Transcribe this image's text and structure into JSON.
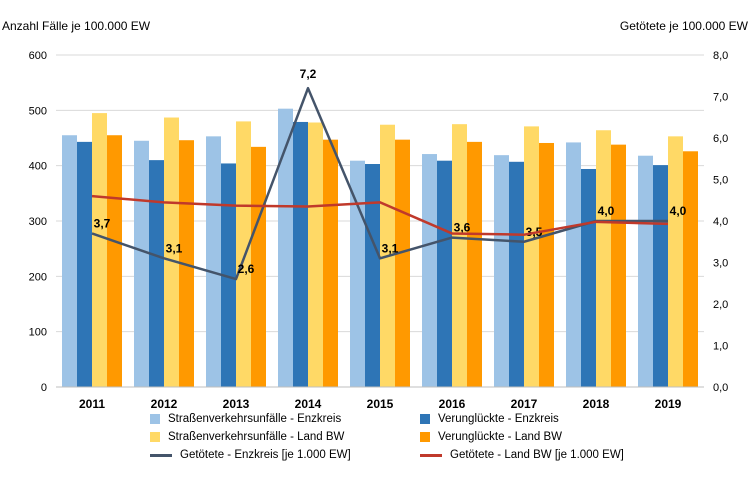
{
  "chart_data": {
    "type": "bar",
    "categories": [
      "2011",
      "2012",
      "2013",
      "2014",
      "2015",
      "2016",
      "2017",
      "2018",
      "2019"
    ],
    "y_left": {
      "label": "Anzahl Fälle je 100.000 EW",
      "range": [
        0,
        600
      ],
      "ticks": [
        "0",
        "100",
        "200",
        "300",
        "400",
        "500",
        "600"
      ]
    },
    "y_right": {
      "label": "Getötete je 100.000 EW",
      "range": [
        0,
        8
      ],
      "ticks": [
        "0,0",
        "1,0",
        "2,0",
        "3,0",
        "4,0",
        "5,0",
        "6,0",
        "7,0",
        "8,0"
      ]
    },
    "grid": true,
    "legend_position": "bottom",
    "series": [
      {
        "name": "Straßenverkehrsunfälle - Enzkreis",
        "type": "bar",
        "axis": "left",
        "color": "#9DC3E6",
        "values": [
          455,
          445,
          453,
          503,
          409,
          421,
          419,
          442,
          418
        ]
      },
      {
        "name": "Verunglückte - Enzkreis",
        "type": "bar",
        "axis": "left",
        "color": "#2E75B6",
        "values": [
          443,
          410,
          404,
          479,
          403,
          409,
          407,
          394,
          401
        ]
      },
      {
        "name": "Straßenverkehrsunfälle - Land BW",
        "type": "bar",
        "axis": "left",
        "color": "#FFD966",
        "values": [
          495,
          487,
          480,
          478,
          474,
          475,
          471,
          464,
          453
        ]
      },
      {
        "name": "Verunglückte - Land BW",
        "type": "bar",
        "axis": "left",
        "color": "#FF9900",
        "values": [
          455,
          446,
          434,
          447,
          447,
          443,
          441,
          438,
          426
        ]
      },
      {
        "name": "Getötete - Enzkreis [je 1.000 EW]",
        "type": "line",
        "axis": "right",
        "color": "#44546A",
        "values": [
          3.7,
          3.1,
          2.6,
          7.2,
          3.1,
          3.6,
          3.5,
          4.0,
          4.0
        ],
        "data_labels": [
          "3,7",
          "3,1",
          "2,6",
          "7,2",
          "3,1",
          "3,6",
          "3,5",
          "4,0",
          "4,0"
        ]
      },
      {
        "name": "Getötete - Land BW [je 1.000 EW]",
        "type": "line",
        "axis": "right",
        "color": "#C0392B",
        "values": [
          4.6,
          4.45,
          4.37,
          4.35,
          4.45,
          3.7,
          3.67,
          3.98,
          3.93
        ]
      }
    ]
  }
}
